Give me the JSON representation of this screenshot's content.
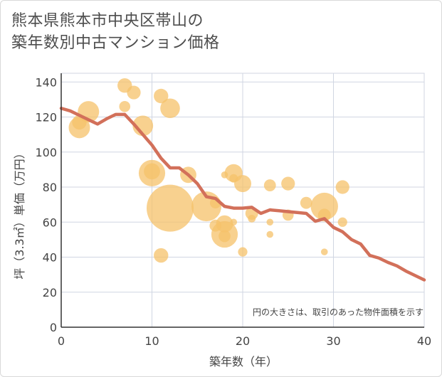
{
  "title": {
    "line1": "熊本県熊本市中央区帯山の",
    "line2": "築年数別中古マンション価格"
  },
  "note": "円の大きさは、取引のあった物件面積を示す",
  "colors": {
    "bubble": "#f5c169",
    "line": "#d2705a",
    "grid": "#d0d6e2",
    "axis": "#333333",
    "text": "#4d4d4d"
  },
  "chart_data": {
    "type": "scatter",
    "xlabel": "築年数（年）",
    "ylabel": "坪（3.3㎡）単価（万円）",
    "xlim": [
      0,
      40
    ],
    "ylim": [
      0,
      145
    ],
    "xticks": [
      0,
      10,
      20,
      30,
      40
    ],
    "yticks": [
      0,
      20,
      40,
      60,
      80,
      100,
      120,
      140
    ],
    "grid": true,
    "bubbles": [
      {
        "x": 2,
        "y": 114,
        "size": 2.0
      },
      {
        "x": 2,
        "y": 117,
        "size": 1.2
      },
      {
        "x": 3,
        "y": 123,
        "size": 2.0
      },
      {
        "x": 7,
        "y": 138,
        "size": 1.2
      },
      {
        "x": 7,
        "y": 126,
        "size": 0.8
      },
      {
        "x": 8,
        "y": 134,
        "size": 1.1
      },
      {
        "x": 9,
        "y": 115,
        "size": 1.9
      },
      {
        "x": 10,
        "y": 88,
        "size": 2.6
      },
      {
        "x": 10,
        "y": 89,
        "size": 1.4
      },
      {
        "x": 11,
        "y": 132,
        "size": 1.2
      },
      {
        "x": 11,
        "y": 41,
        "size": 1.2
      },
      {
        "x": 12,
        "y": 125,
        "size": 1.8
      },
      {
        "x": 12,
        "y": 68,
        "size": 5.0
      },
      {
        "x": 14,
        "y": 87,
        "size": 1.4
      },
      {
        "x": 16,
        "y": 69,
        "size": 3.0
      },
      {
        "x": 17,
        "y": 58,
        "size": 0.9
      },
      {
        "x": 17,
        "y": 71,
        "size": 0.8
      },
      {
        "x": 18,
        "y": 53,
        "size": 2.6
      },
      {
        "x": 18,
        "y": 59,
        "size": 1.5
      },
      {
        "x": 18,
        "y": 52,
        "size": 0.9
      },
      {
        "x": 18,
        "y": 87,
        "size": 0.3
      },
      {
        "x": 19,
        "y": 88,
        "size": 1.6
      },
      {
        "x": 19,
        "y": 85,
        "size": 0.5
      },
      {
        "x": 19,
        "y": 60,
        "size": 0.3
      },
      {
        "x": 20,
        "y": 82,
        "size": 1.5
      },
      {
        "x": 20,
        "y": 43,
        "size": 0.6
      },
      {
        "x": 21,
        "y": 65,
        "size": 1.0
      },
      {
        "x": 21,
        "y": 62,
        "size": 0.4
      },
      {
        "x": 23,
        "y": 81,
        "size": 0.9
      },
      {
        "x": 23,
        "y": 60,
        "size": 0.3
      },
      {
        "x": 23,
        "y": 53,
        "size": 0.3
      },
      {
        "x": 25,
        "y": 82,
        "size": 1.1
      },
      {
        "x": 25,
        "y": 64,
        "size": 0.8
      },
      {
        "x": 27,
        "y": 71,
        "size": 0.9
      },
      {
        "x": 29,
        "y": 69,
        "size": 2.7
      },
      {
        "x": 29,
        "y": 64,
        "size": 1.0
      },
      {
        "x": 29,
        "y": 43,
        "size": 0.3
      },
      {
        "x": 31,
        "y": 80,
        "size": 1.1
      },
      {
        "x": 31,
        "y": 60,
        "size": 0.6
      }
    ],
    "trend": {
      "x": [
        0,
        1,
        2,
        3,
        4,
        5,
        6,
        7,
        8,
        9,
        10,
        11,
        12,
        13,
        14,
        15,
        16,
        17,
        18,
        19,
        20,
        21,
        22,
        23,
        24,
        25,
        26,
        27,
        28,
        29,
        30,
        31,
        32,
        33,
        34,
        35,
        36,
        37,
        38,
        39,
        40
      ],
      "y": [
        125,
        123.5,
        121,
        118.5,
        116,
        119,
        121.5,
        121.5,
        116,
        110,
        104,
        96.5,
        91,
        91,
        87,
        82,
        74.5,
        73.5,
        69,
        68,
        68,
        68.5,
        65,
        67,
        66.5,
        66,
        65.5,
        65,
        60.5,
        62,
        57,
        54.5,
        50,
        47.5,
        41,
        39.5,
        37,
        35,
        32,
        29.5,
        27
      ]
    }
  }
}
